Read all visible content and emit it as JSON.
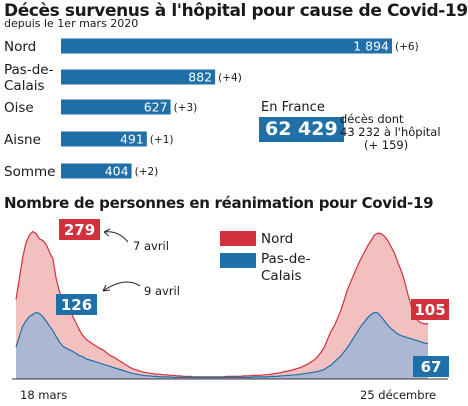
{
  "header": {
    "title": "Décès survenus à l'hôpital pour cause de Covid-19",
    "subtitle": "depuis le 1er mars 2020"
  },
  "colors": {
    "blue": "#1f6fa8",
    "red": "#d0313b",
    "red_fill": "#f3c0c0",
    "blue_fill": "#9fb5d6"
  },
  "chart_data": [
    {
      "type": "bar",
      "orientation": "horizontal",
      "categories": [
        [
          "Nord"
        ],
        [
          "Pas-de-",
          "Calais"
        ],
        [
          "Oise"
        ],
        [
          "Aisne"
        ],
        [
          "Somme"
        ]
      ],
      "values": [
        1894,
        882,
        627,
        491,
        404
      ],
      "value_labels": [
        "1 894",
        "882",
        "627",
        "491",
        "404"
      ],
      "increments": [
        "(+6)",
        "(+4)",
        "(+3)",
        "(+1)",
        "(+2)"
      ],
      "xlim": [
        0,
        1894
      ]
    },
    {
      "type": "area",
      "title": "Nombre de personnes en réanimation pour Covid-19",
      "series": [
        {
          "name": "Nord",
          "color": "#d0313b",
          "values": [
            150,
            190,
            230,
            258,
            272,
            279,
            275,
            265,
            262,
            255,
            240,
            228,
            190,
            165,
            150,
            140,
            132,
            118,
            105,
            92,
            82,
            75,
            70,
            66,
            62,
            58,
            55,
            50,
            45,
            42,
            38,
            34,
            30,
            26,
            22,
            19,
            17,
            15,
            13,
            12,
            11,
            10,
            9,
            9,
            8,
            8,
            7,
            7,
            6,
            6,
            5,
            5,
            5,
            4,
            4,
            4,
            4,
            4,
            4,
            4,
            4,
            4,
            4,
            5,
            5,
            5,
            5,
            5,
            6,
            6,
            6,
            7,
            7,
            7,
            8,
            8,
            9,
            10,
            11,
            12,
            14,
            15,
            16,
            18,
            20,
            22,
            25,
            28,
            32,
            36,
            42,
            50,
            60,
            75,
            90,
            100,
            115,
            130,
            150,
            170,
            185,
            200,
            215,
            228,
            240,
            252,
            262,
            272,
            276,
            275,
            270,
            262,
            250,
            238,
            220,
            205,
            185,
            160,
            138,
            120,
            110,
            106,
            104,
            105
          ]
        },
        {
          "name": "Pas-de-Calais",
          "color": "#1f6fa8",
          "values": [
            60,
            80,
            100,
            110,
            118,
            122,
            126,
            124,
            118,
            110,
            100,
            92,
            80,
            70,
            62,
            58,
            55,
            52,
            48,
            44,
            42,
            38,
            36,
            34,
            32,
            30,
            28,
            26,
            24,
            22,
            20,
            18,
            16,
            14,
            12,
            10,
            9,
            8,
            7,
            6,
            6,
            5,
            5,
            4,
            4,
            4,
            4,
            3,
            3,
            3,
            3,
            3,
            3,
            3,
            3,
            3,
            3,
            3,
            3,
            3,
            3,
            3,
            3,
            3,
            3,
            3,
            3,
            3,
            3,
            3,
            3,
            4,
            4,
            4,
            4,
            4,
            5,
            5,
            5,
            6,
            6,
            7,
            7,
            8,
            8,
            9,
            10,
            11,
            12,
            13,
            14,
            16,
            18,
            22,
            26,
            32,
            38,
            44,
            52,
            60,
            70,
            80,
            90,
            100,
            108,
            116,
            122,
            126,
            125,
            118,
            110,
            102,
            95,
            90,
            85,
            82,
            80,
            78,
            76,
            74,
            72,
            70,
            68,
            67
          ]
        }
      ],
      "ylim": [
        0,
        280
      ],
      "x_start_label": "18 mars",
      "x_end_label": "25 décembre",
      "annotations": [
        {
          "series": "Nord",
          "value": "279",
          "text": "7 avril"
        },
        {
          "series": "Pas-de-Calais",
          "value": "126",
          "text": "9 avril"
        },
        {
          "series": "Nord",
          "value": "105"
        },
        {
          "series": "Pas-de-Calais",
          "value": "67"
        }
      ]
    }
  ],
  "total_box": {
    "heading": "En France",
    "total": "62 429",
    "line1": "décès dont",
    "line2": "43 232 à l'hôpital",
    "line3": "(+ 159)"
  }
}
